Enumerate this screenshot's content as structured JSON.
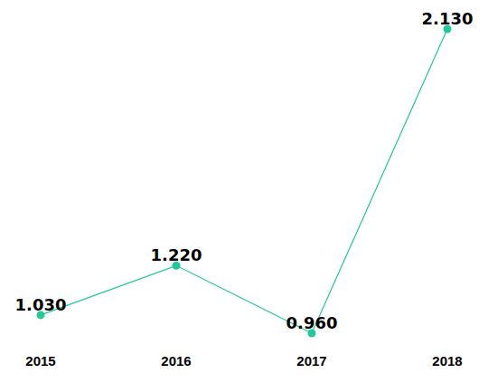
{
  "chart_data": {
    "type": "line",
    "categories": [
      "2015",
      "2016",
      "2017",
      "2018"
    ],
    "values": [
      1.03,
      1.22,
      0.96,
      2.13
    ],
    "value_labels": [
      "1.030",
      "1.220",
      "0.960",
      "2.130"
    ],
    "color": "#20c997",
    "data_labels": true,
    "tick_labels": "x",
    "marker": "circle"
  }
}
